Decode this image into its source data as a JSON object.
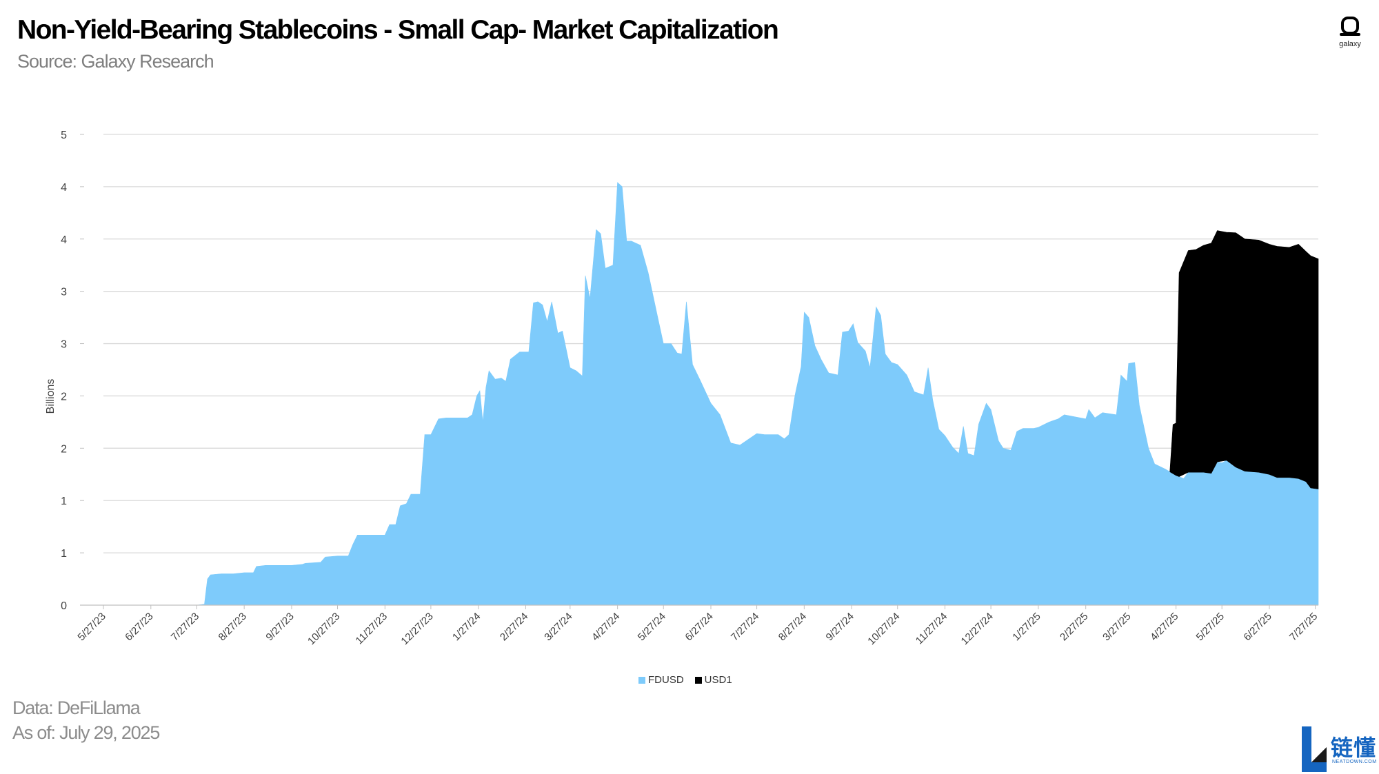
{
  "header": {
    "title": "Non-Yield-Bearing Stablecoins - Small Cap- Market Capitalization",
    "subtitle": "Source: Galaxy Research"
  },
  "footer": {
    "data_source": "Data: DeFiLlama",
    "as_of": "As of: July 29, 2025"
  },
  "logos": {
    "galaxy_word": "galaxy",
    "neatdown_cn": "链懂",
    "neatdown_en": "NEATDOWN.COM"
  },
  "colors": {
    "FDUSD": "#7ecbfb",
    "USD1": "#000000",
    "grid": "#d9d9d9",
    "axis_text": "#404040"
  },
  "chart_data": {
    "type": "area",
    "stacked": true,
    "ylabel": "Billions",
    "xlabel": "",
    "ylim": [
      0,
      4.5
    ],
    "y_ticks": [
      0,
      0.5,
      1,
      1.5,
      2,
      2.5,
      3,
      3.5,
      4,
      4.5
    ],
    "y_tick_labels": [
      "0",
      "1",
      "1",
      "2",
      "2",
      "3",
      "3",
      "4",
      "4",
      "5"
    ],
    "x_tick_labels": [
      "5/27/23",
      "6/27/23",
      "7/27/23",
      "8/27/23",
      "9/27/23",
      "10/27/23",
      "11/27/23",
      "12/27/23",
      "1/27/24",
      "2/27/24",
      "3/27/24",
      "4/27/24",
      "5/27/24",
      "6/27/24",
      "7/27/24",
      "8/27/24",
      "9/27/24",
      "10/27/24",
      "11/27/24",
      "12/27/24",
      "1/27/25",
      "2/27/25",
      "3/27/25",
      "4/27/25",
      "5/27/25",
      "6/27/25",
      "7/27/25"
    ],
    "grid": true,
    "legend_position": "bottom",
    "series": [
      {
        "name": "FDUSD",
        "points": [
          [
            "2023-05-27",
            0
          ],
          [
            "2023-07-27",
            0
          ],
          [
            "2023-08-01",
            0.01
          ],
          [
            "2023-08-03",
            0.25
          ],
          [
            "2023-08-05",
            0.29
          ],
          [
            "2023-08-12",
            0.3
          ],
          [
            "2023-08-20",
            0.3
          ],
          [
            "2023-08-27",
            0.31
          ],
          [
            "2023-09-02",
            0.31
          ],
          [
            "2023-09-04",
            0.37
          ],
          [
            "2023-09-10",
            0.38
          ],
          [
            "2023-09-27",
            0.38
          ],
          [
            "2023-10-04",
            0.39
          ],
          [
            "2023-10-06",
            0.4
          ],
          [
            "2023-10-16",
            0.41
          ],
          [
            "2023-10-19",
            0.46
          ],
          [
            "2023-10-27",
            0.47
          ],
          [
            "2023-11-03",
            0.47
          ],
          [
            "2023-11-06",
            0.58
          ],
          [
            "2023-11-09",
            0.67
          ],
          [
            "2023-11-27",
            0.67
          ],
          [
            "2023-11-30",
            0.77
          ],
          [
            "2023-12-04",
            0.77
          ],
          [
            "2023-12-07",
            0.95
          ],
          [
            "2023-12-11",
            0.97
          ],
          [
            "2023-12-14",
            1.06
          ],
          [
            "2023-12-20",
            1.06
          ],
          [
            "2023-12-23",
            1.63
          ],
          [
            "2023-12-27",
            1.63
          ],
          [
            "2024-01-01",
            1.78
          ],
          [
            "2024-01-06",
            1.79
          ],
          [
            "2024-01-20",
            1.79
          ],
          [
            "2024-01-23",
            1.82
          ],
          [
            "2024-01-26",
            2.0
          ],
          [
            "2024-01-28",
            2.05
          ],
          [
            "2024-01-30",
            1.75
          ],
          [
            "2024-02-01",
            2.08
          ],
          [
            "2024-02-03",
            2.24
          ],
          [
            "2024-02-07",
            2.16
          ],
          [
            "2024-02-11",
            2.17
          ],
          [
            "2024-02-14",
            2.14
          ],
          [
            "2024-02-17",
            2.35
          ],
          [
            "2024-02-23",
            2.42
          ],
          [
            "2024-02-29",
            2.42
          ],
          [
            "2024-03-03",
            2.89
          ],
          [
            "2024-03-06",
            2.9
          ],
          [
            "2024-03-09",
            2.87
          ],
          [
            "2024-03-12",
            2.71
          ],
          [
            "2024-03-15",
            2.9
          ],
          [
            "2024-03-19",
            2.6
          ],
          [
            "2024-03-22",
            2.62
          ],
          [
            "2024-03-27",
            2.27
          ],
          [
            "2024-03-31",
            2.24
          ],
          [
            "2024-04-04",
            2.19
          ],
          [
            "2024-04-06",
            3.15
          ],
          [
            "2024-04-09",
            2.93
          ],
          [
            "2024-04-13",
            3.59
          ],
          [
            "2024-04-16",
            3.55
          ],
          [
            "2024-04-19",
            3.22
          ],
          [
            "2024-04-24",
            3.25
          ],
          [
            "2024-04-27",
            4.04
          ],
          [
            "2024-04-30",
            4.0
          ],
          [
            "2024-05-03",
            3.48
          ],
          [
            "2024-05-06",
            3.48
          ],
          [
            "2024-05-12",
            3.44
          ],
          [
            "2024-05-17",
            3.18
          ],
          [
            "2024-05-23",
            2.77
          ],
          [
            "2024-05-27",
            2.5
          ],
          [
            "2024-06-01",
            2.5
          ],
          [
            "2024-06-05",
            2.41
          ],
          [
            "2024-06-08",
            2.4
          ],
          [
            "2024-06-11",
            2.9
          ],
          [
            "2024-06-15",
            2.3
          ],
          [
            "2024-06-20",
            2.15
          ],
          [
            "2024-06-27",
            1.93
          ],
          [
            "2024-07-03",
            1.82
          ],
          [
            "2024-07-10",
            1.55
          ],
          [
            "2024-07-16",
            1.53
          ],
          [
            "2024-07-20",
            1.57
          ],
          [
            "2024-07-27",
            1.64
          ],
          [
            "2024-08-01",
            1.63
          ],
          [
            "2024-08-10",
            1.63
          ],
          [
            "2024-08-14",
            1.59
          ],
          [
            "2024-08-17",
            1.63
          ],
          [
            "2024-08-21",
            2.01
          ],
          [
            "2024-08-25",
            2.28
          ],
          [
            "2024-08-27",
            2.8
          ],
          [
            "2024-08-30",
            2.75
          ],
          [
            "2024-09-03",
            2.48
          ],
          [
            "2024-09-07",
            2.35
          ],
          [
            "2024-09-12",
            2.22
          ],
          [
            "2024-09-18",
            2.2
          ],
          [
            "2024-09-21",
            2.61
          ],
          [
            "2024-09-25",
            2.62
          ],
          [
            "2024-09-28",
            2.69
          ],
          [
            "2024-10-01",
            2.51
          ],
          [
            "2024-10-06",
            2.43
          ],
          [
            "2024-10-09",
            2.27
          ],
          [
            "2024-10-13",
            2.85
          ],
          [
            "2024-10-16",
            2.77
          ],
          [
            "2024-10-19",
            2.4
          ],
          [
            "2024-10-23",
            2.32
          ],
          [
            "2024-10-27",
            2.3
          ],
          [
            "2024-11-02",
            2.2
          ],
          [
            "2024-11-07",
            2.04
          ],
          [
            "2024-11-13",
            2.01
          ],
          [
            "2024-11-16",
            2.27
          ],
          [
            "2024-11-19",
            1.96
          ],
          [
            "2024-11-23",
            1.68
          ],
          [
            "2024-11-27",
            1.62
          ],
          [
            "2024-12-02",
            1.51
          ],
          [
            "2024-12-06",
            1.45
          ],
          [
            "2024-12-09",
            1.71
          ],
          [
            "2024-12-12",
            1.45
          ],
          [
            "2024-12-16",
            1.43
          ],
          [
            "2024-12-19",
            1.73
          ],
          [
            "2024-12-24",
            1.93
          ],
          [
            "2024-12-27",
            1.87
          ],
          [
            "2025-01-01",
            1.57
          ],
          [
            "2025-01-04",
            1.5
          ],
          [
            "2025-01-09",
            1.48
          ],
          [
            "2025-01-13",
            1.66
          ],
          [
            "2025-01-17",
            1.69
          ],
          [
            "2025-01-24",
            1.69
          ],
          [
            "2025-01-27",
            1.7
          ],
          [
            "2025-02-03",
            1.75
          ],
          [
            "2025-02-09",
            1.78
          ],
          [
            "2025-02-13",
            1.82
          ],
          [
            "2025-02-27",
            1.78
          ],
          [
            "2025-03-01",
            1.87
          ],
          [
            "2025-03-05",
            1.79
          ],
          [
            "2025-03-10",
            1.84
          ],
          [
            "2025-03-19",
            1.82
          ],
          [
            "2025-03-22",
            2.2
          ],
          [
            "2025-03-26",
            2.14
          ],
          [
            "2025-03-27",
            2.31
          ],
          [
            "2025-03-31",
            2.32
          ],
          [
            "2025-04-03",
            1.91
          ],
          [
            "2025-04-09",
            1.5
          ],
          [
            "2025-04-13",
            1.35
          ],
          [
            "2025-04-20",
            1.3
          ],
          [
            "2025-04-27",
            1.24
          ],
          [
            "2025-05-02",
            1.21
          ],
          [
            "2025-05-05",
            1.27
          ],
          [
            "2025-05-15",
            1.27
          ],
          [
            "2025-05-20",
            1.26
          ],
          [
            "2025-05-24",
            1.37
          ],
          [
            "2025-05-27",
            1.36
          ],
          [
            "2025-06-01",
            1.4
          ],
          [
            "2025-06-05",
            1.32
          ],
          [
            "2025-06-11",
            1.28
          ],
          [
            "2025-06-20",
            1.27
          ],
          [
            "2025-06-27",
            1.25
          ],
          [
            "2025-07-02",
            1.22
          ],
          [
            "2025-07-10",
            1.22
          ],
          [
            "2025-07-16",
            1.21
          ],
          [
            "2025-07-21",
            1.18
          ],
          [
            "2025-07-24",
            1.12
          ],
          [
            "2025-07-29",
            1.11
          ]
        ]
      },
      {
        "name": "USD1",
        "points": [
          [
            "2025-04-23",
            0
          ],
          [
            "2025-04-25",
            0.47
          ],
          [
            "2025-04-27",
            0.5
          ],
          [
            "2025-04-29",
            1.95
          ],
          [
            "2025-05-05",
            2.12
          ],
          [
            "2025-05-10",
            2.13
          ],
          [
            "2025-05-15",
            2.17
          ],
          [
            "2025-05-20",
            2.2
          ],
          [
            "2025-05-24",
            2.21
          ],
          [
            "2025-05-30",
            2.18
          ],
          [
            "2025-06-05",
            2.24
          ],
          [
            "2025-06-11",
            2.22
          ],
          [
            "2025-06-20",
            2.22
          ],
          [
            "2025-06-27",
            2.2
          ],
          [
            "2025-07-02",
            2.21
          ],
          [
            "2025-07-10",
            2.2
          ],
          [
            "2025-07-16",
            2.24
          ],
          [
            "2025-07-21",
            2.2
          ],
          [
            "2025-07-24",
            2.22
          ],
          [
            "2025-07-29",
            2.2
          ]
        ]
      }
    ]
  }
}
